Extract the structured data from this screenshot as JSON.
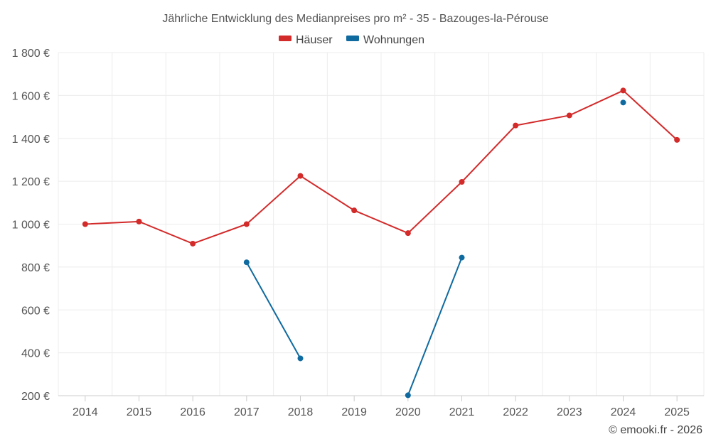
{
  "chart_data": {
    "type": "line",
    "title": "Jährliche Entwicklung des Medianpreises pro m² - 35 - Bazouges-la-Pérouse",
    "categories": [
      "2014",
      "2015",
      "2016",
      "2017",
      "2018",
      "2019",
      "2020",
      "2021",
      "2022",
      "2023",
      "2024",
      "2025"
    ],
    "ylim": [
      200,
      1800
    ],
    "yticks": [
      200,
      400,
      600,
      800,
      1000,
      1200,
      1400,
      1600,
      1800
    ],
    "ytick_labels": [
      "200 €",
      "400 €",
      "600 €",
      "800 €",
      "1 000 €",
      "1 200 €",
      "1 400 €",
      "1 600 €",
      "1 800 €"
    ],
    "grid": true,
    "legend_position": "top-center",
    "series": [
      {
        "name": "Häuser",
        "color": "#d32a2a",
        "values": [
          1000,
          1012,
          909,
          1000,
          1225,
          1064,
          958,
          1197,
          1460,
          1507,
          1623,
          1393
        ]
      },
      {
        "name": "Wohnungen",
        "color": "#0f6aa0",
        "values": [
          null,
          null,
          null,
          822,
          374,
          null,
          202,
          844,
          null,
          null,
          1567,
          null
        ]
      }
    ]
  },
  "credit": "© emooki.fr - 2026"
}
